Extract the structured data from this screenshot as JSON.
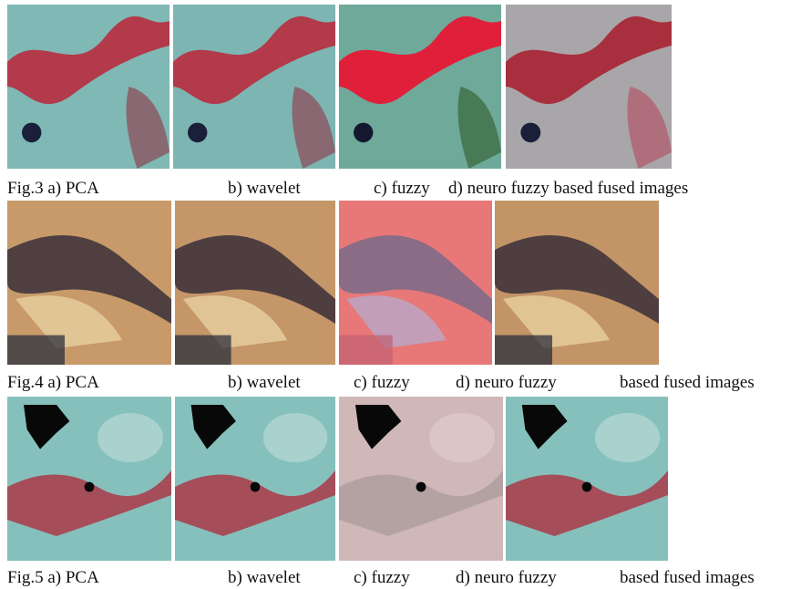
{
  "figures": [
    {
      "captions": [
        "Fig.3 a) PCA",
        "b) wavelet",
        "c) fuzzy",
        "d) neuro fuzzy based fused images"
      ]
    },
    {
      "captions": [
        "Fig.4 a) PCA",
        "b) wavelet",
        "c) fuzzy",
        "d) neuro fuzzy",
        "based fused images"
      ]
    },
    {
      "captions": [
        "Fig.5 a) PCA",
        "b) wavelet",
        "c) fuzzy",
        "d) neuro fuzzy",
        "based fused images"
      ]
    }
  ]
}
